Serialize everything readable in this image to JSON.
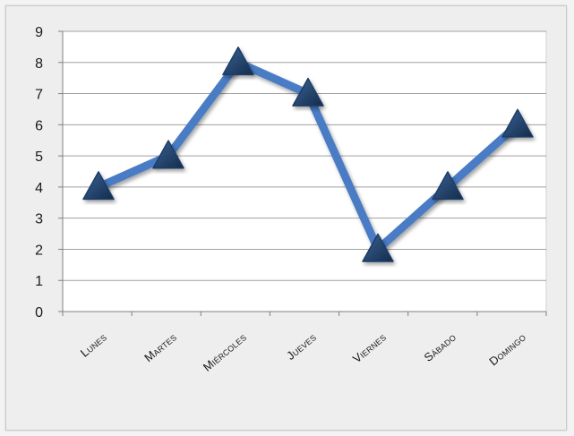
{
  "chart_data": {
    "type": "line",
    "categories": [
      "Lunes",
      "Martes",
      "Miércoles",
      "Jueves",
      "Viernes",
      "Sábado",
      "Domingo"
    ],
    "series": [
      {
        "values": [
          4,
          5,
          8,
          7,
          2,
          4,
          6
        ]
      }
    ],
    "ylim": [
      0,
      9
    ],
    "yticks": [
      0,
      1,
      2,
      3,
      4,
      5,
      6,
      7,
      8,
      9
    ],
    "grid": true,
    "legend": "none",
    "marker": "triangle",
    "colors": {
      "line": "#4a7cc4",
      "marker": "#1f3d66",
      "grid": "#a0a0a0",
      "plot_background": "#ffffff"
    }
  }
}
